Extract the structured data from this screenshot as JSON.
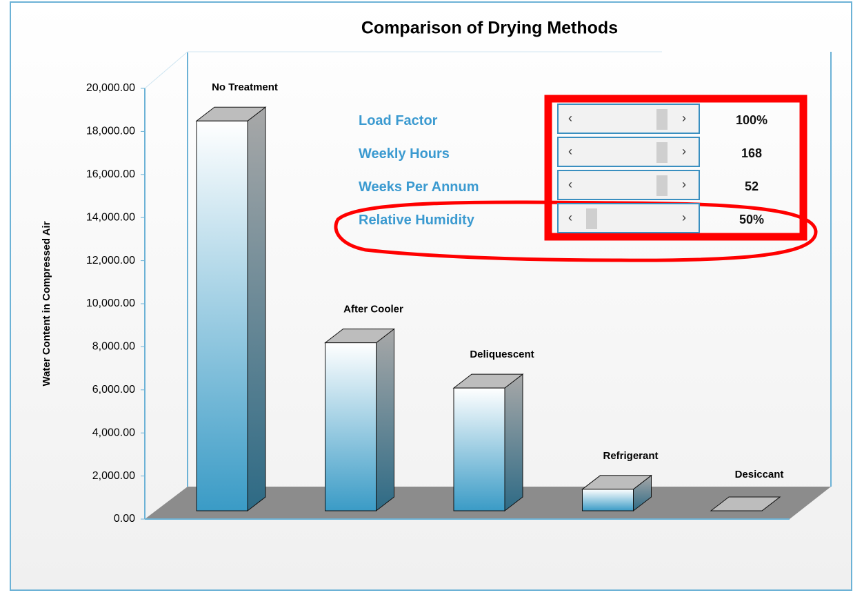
{
  "chart_data": {
    "type": "bar3d",
    "title": "Comparison of Drying Methods",
    "y_label": "Water Content in Compressed Air",
    "categories": [
      "No Treatment",
      "After Cooler",
      "Deliquescent",
      "Refrigerant",
      "Desiccant"
    ],
    "values": [
      18100,
      7800,
      5700,
      1000,
      0
    ],
    "ylim": [
      0,
      20000
    ],
    "yticks": [
      {
        "value": 0,
        "label": "0.00"
      },
      {
        "value": 2000,
        "label": "2,000.00"
      },
      {
        "value": 4000,
        "label": "4,000.00"
      },
      {
        "value": 6000,
        "label": "6,000.00"
      },
      {
        "value": 8000,
        "label": "8,000.00"
      },
      {
        "value": 10000,
        "label": "10,000.00"
      },
      {
        "value": 12000,
        "label": "12,000.00"
      },
      {
        "value": 14000,
        "label": "14,000.00"
      },
      {
        "value": 16000,
        "label": "16,000.00"
      },
      {
        "value": 18000,
        "label": "18,000.00"
      },
      {
        "value": 20000,
        "label": "20,000.00"
      }
    ]
  },
  "controls": [
    {
      "label": "Load Factor",
      "value": "100%"
    },
    {
      "label": "Weekly Hours",
      "value": "168"
    },
    {
      "label": "Weeks Per Annum",
      "value": "52"
    },
    {
      "label": "Relative Humidity",
      "value": "50%"
    }
  ]
}
